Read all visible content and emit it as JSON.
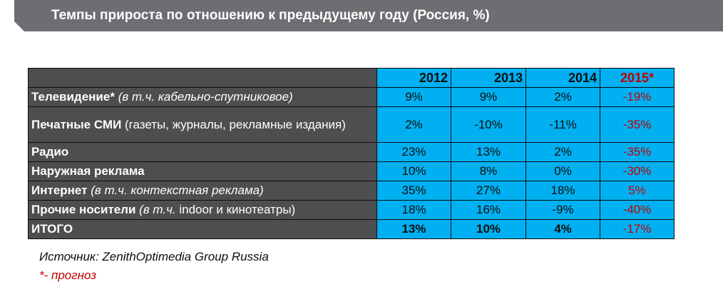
{
  "title": "Темпы прироста по отношению к предыдущему году (Россия, %)",
  "years": [
    "2012",
    "2013",
    "2014",
    "2015*"
  ],
  "rows": [
    {
      "label": "Телевидение*",
      "note": " (в т.ч.  кабельно-спутниковое)",
      "values": [
        "9%",
        "9%",
        "2%",
        "-19%"
      ]
    },
    {
      "label": "Печатные СМИ",
      "note": " (газеты, журналы, рекламные издания)",
      "values": [
        "2%",
        "-10%",
        "-11%",
        "-35%"
      ]
    },
    {
      "label": "Радио",
      "note": "",
      "values": [
        "23%",
        "13%",
        "2%",
        "-35%"
      ]
    },
    {
      "label": "Наружная реклама",
      "note": "",
      "values": [
        "10%",
        "8%",
        "0%",
        "-30%"
      ]
    },
    {
      "label": "Интернет",
      "note": " (в т.ч.  контекстная реклама)",
      "values": [
        "35%",
        "27%",
        "18%",
        "5%"
      ]
    },
    {
      "label": "Прочие носители",
      "note_italic": " (в т.ч.",
      "note": " indoor и кинотеатры)",
      "values": [
        "18%",
        "16%",
        "-9%",
        "-40%"
      ]
    },
    {
      "label": "ИТОГО",
      "note": "",
      "values": [
        "13%",
        "10%",
        "4%",
        "-17%"
      ]
    }
  ],
  "source": "Источник: ZenithOptimedia Group Russia",
  "forecast_note": "*- прогноз",
  "colors": {
    "header_dark": "#4e4e50",
    "cell_blue": "#00b0f0",
    "forecast_red": "#c00000",
    "banner_gray": "#6d6e71"
  }
}
